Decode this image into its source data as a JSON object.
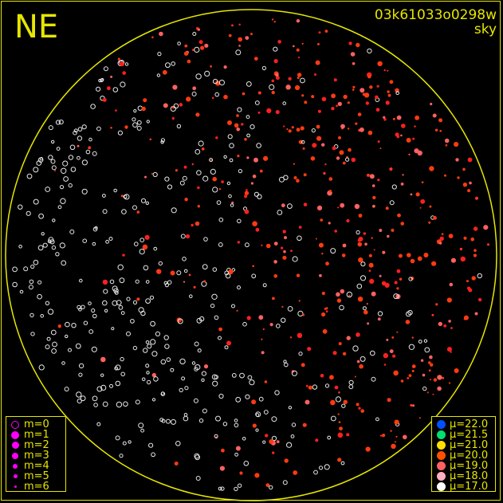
{
  "header": {
    "direction": "NE",
    "frame_id": "03k61033o0298w",
    "mode": "sky"
  },
  "colors": {
    "frame": "#e6e600",
    "background": "#000000",
    "magnitude_symbol": "#ff00ff"
  },
  "magnitude_legend": [
    {
      "label": "m=0",
      "style": "ring"
    },
    {
      "label": "m=1"
    },
    {
      "label": "m=2"
    },
    {
      "label": "m=3"
    },
    {
      "label": "m=4"
    },
    {
      "label": "m=5"
    },
    {
      "label": "m=6"
    }
  ],
  "mu_legend": [
    {
      "label": "μ=22.0",
      "color": "#0050ff"
    },
    {
      "label": "μ=21.5",
      "color": "#00e070"
    },
    {
      "label": "μ=21.0",
      "color": "#ffe000"
    },
    {
      "label": "μ=20.0",
      "color": "#ff5000"
    },
    {
      "label": "μ=19.0",
      "color": "#ff6060"
    },
    {
      "label": "μ=18.0",
      "color": "#ffb0c0"
    },
    {
      "label": "μ=17.0",
      "color": "#ffffff"
    }
  ]
}
